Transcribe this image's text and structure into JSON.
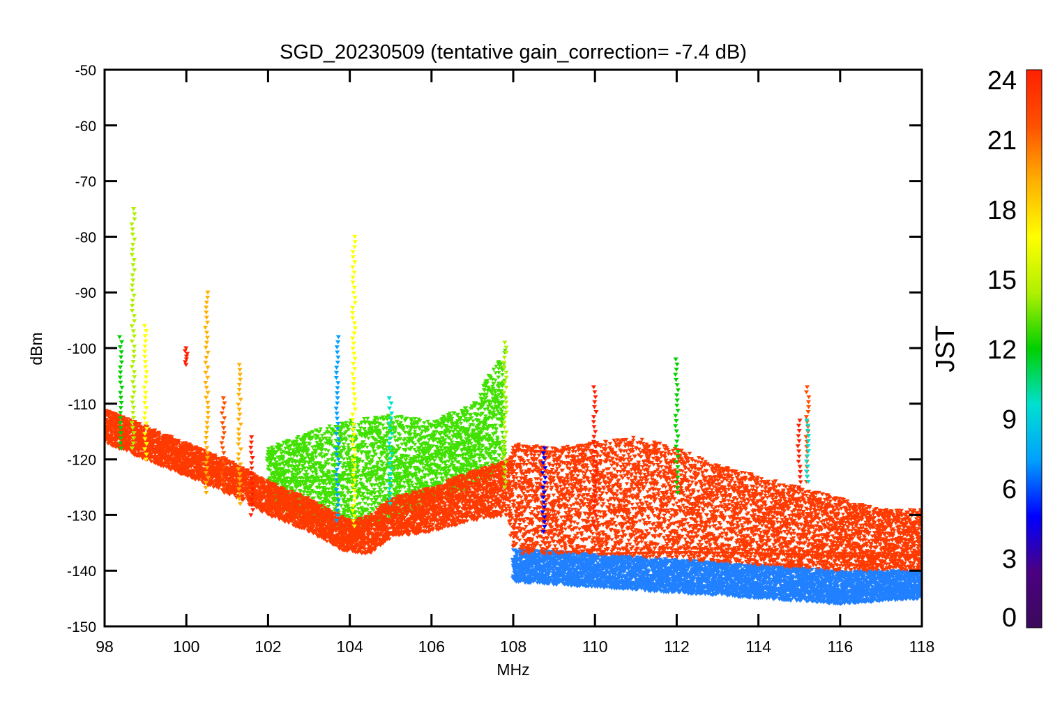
{
  "chart_data": {
    "type": "scatter",
    "title": "SGD_20230509 (tentative gain_correction= -7.4 dB)",
    "xlabel": "MHz",
    "ylabel": "dBm",
    "xlim": [
      98,
      118
    ],
    "ylim": [
      -150,
      -50
    ],
    "x_ticks": [
      98,
      100,
      102,
      104,
      106,
      108,
      110,
      112,
      114,
      116,
      118
    ],
    "x_tick_labels": [
      "98",
      "100",
      "102",
      "104",
      "106",
      "108",
      "110",
      "112",
      "114",
      "116",
      "118"
    ],
    "y_ticks": [
      -50,
      -60,
      -70,
      -80,
      -90,
      -100,
      -110,
      -120,
      -130,
      -140,
      -150
    ],
    "y_tick_labels": [
      "-50",
      "-60",
      "-70",
      "-80",
      "-90",
      "-100",
      "-110",
      "-120",
      "-130",
      "-140",
      "-150"
    ],
    "grid": false,
    "marker": "triangle-down",
    "colorbar": {
      "label": "JST",
      "range": [
        0,
        24
      ],
      "ticks": [
        0,
        3,
        6,
        9,
        12,
        15,
        18,
        21,
        24
      ],
      "tick_labels": [
        "0",
        "3",
        "6",
        "9",
        "12",
        "15",
        "18",
        "21",
        "24"
      ],
      "colormap": "rainbow",
      "colors": [
        "#3a0a5a",
        "#4b0082",
        "#0000ff",
        "#00a0ff",
        "#00e0d0",
        "#00d000",
        "#b0f000",
        "#ffff00",
        "#ffb000",
        "#ff5000",
        "#ff2000"
      ]
    },
    "series": [
      {
        "hour_range": [
          21,
          24
        ],
        "color": "#ff3a00",
        "lower_envelope": [
          [
            98,
            -117
          ],
          [
            99,
            -120
          ],
          [
            100,
            -123
          ],
          [
            101,
            -126
          ],
          [
            102,
            -130
          ],
          [
            103,
            -133
          ],
          [
            104,
            -137
          ],
          [
            104.5,
            -137
          ],
          [
            105,
            -134
          ],
          [
            106,
            -133
          ],
          [
            107,
            -131
          ],
          [
            107.9,
            -130
          ],
          [
            108,
            -137
          ],
          [
            110,
            -137
          ],
          [
            112,
            -138
          ],
          [
            114,
            -139
          ],
          [
            116,
            -140
          ],
          [
            118,
            -140
          ]
        ],
        "upper_envelope": [
          [
            98,
            -111
          ],
          [
            99,
            -114
          ],
          [
            100,
            -117
          ],
          [
            101,
            -120
          ],
          [
            102,
            -124
          ],
          [
            103,
            -127
          ],
          [
            104,
            -131
          ],
          [
            104.5,
            -130
          ],
          [
            105,
            -127
          ],
          [
            106,
            -125
          ],
          [
            107,
            -122
          ],
          [
            107.9,
            -120
          ],
          [
            108,
            -117
          ],
          [
            109,
            -118
          ],
          [
            110,
            -117
          ],
          [
            111,
            -116
          ],
          [
            112,
            -118
          ],
          [
            113,
            -121
          ],
          [
            114,
            -123
          ],
          [
            115,
            -125
          ],
          [
            116,
            -127
          ],
          [
            117,
            -129
          ],
          [
            118,
            -129
          ]
        ]
      },
      {
        "hour_range": [
          13,
          18
        ],
        "color": "#40e000",
        "lower_envelope": [
          [
            102,
            -128
          ],
          [
            103,
            -131
          ],
          [
            104,
            -133
          ],
          [
            105,
            -131
          ],
          [
            106,
            -128
          ],
          [
            107,
            -125
          ],
          [
            108,
            -122
          ]
        ],
        "upper_envelope": [
          [
            102,
            -118
          ],
          [
            103,
            -115
          ],
          [
            104,
            -113
          ],
          [
            105,
            -112
          ],
          [
            106,
            -113
          ],
          [
            107,
            -110
          ],
          [
            107.8,
            -100
          ]
        ]
      },
      {
        "hour_range": [
          0,
          12
        ],
        "color": "#2080ff",
        "lower_envelope": [
          [
            108,
            -142
          ],
          [
            110,
            -143
          ],
          [
            112,
            -144
          ],
          [
            114,
            -145
          ],
          [
            116,
            -146
          ],
          [
            118,
            -145
          ]
        ],
        "upper_envelope": [
          [
            108,
            -136
          ],
          [
            110,
            -137
          ],
          [
            112,
            -138
          ],
          [
            114,
            -139
          ],
          [
            116,
            -140
          ],
          [
            118,
            -140
          ]
        ]
      }
    ],
    "spikes": [
      {
        "x": 98.4,
        "y_min": -118,
        "y_max": -98,
        "hour": 13
      },
      {
        "x": 98.7,
        "y_min": -118,
        "y_max": -75,
        "hour": 15
      },
      {
        "x": 99.0,
        "y_min": -120,
        "y_max": -96,
        "hour": 17
      },
      {
        "x": 100.0,
        "y_min": -103,
        "y_max": -100,
        "hour": 23
      },
      {
        "x": 100.5,
        "y_min": -126,
        "y_max": -90,
        "hour": 20
      },
      {
        "x": 100.9,
        "y_min": -126,
        "y_max": -109,
        "hour": 21
      },
      {
        "x": 101.3,
        "y_min": -128,
        "y_max": -103,
        "hour": 20
      },
      {
        "x": 101.6,
        "y_min": -130,
        "y_max": -116,
        "hour": 23
      },
      {
        "x": 103.7,
        "y_min": -131,
        "y_max": -98,
        "hour": 8
      },
      {
        "x": 104.1,
        "y_min": -132,
        "y_max": -80,
        "hour": 16
      },
      {
        "x": 105.0,
        "y_min": -128,
        "y_max": -109,
        "hour": 10
      },
      {
        "x": 107.8,
        "y_min": -125,
        "y_max": -99,
        "hour": 15
      },
      {
        "x": 108.75,
        "y_min": -133,
        "y_max": -118,
        "hour": 5
      },
      {
        "x": 110.0,
        "y_min": -132,
        "y_max": -107,
        "hour": 23
      },
      {
        "x": 112.0,
        "y_min": -126,
        "y_max": -102,
        "hour": 12
      },
      {
        "x": 115.0,
        "y_min": -125,
        "y_max": -113,
        "hour": 23
      },
      {
        "x": 115.2,
        "y_min": -124,
        "y_max": -107,
        "hour": 22
      },
      {
        "x": 115.2,
        "y_min": -124,
        "y_max": -113,
        "hour": 9
      }
    ]
  }
}
